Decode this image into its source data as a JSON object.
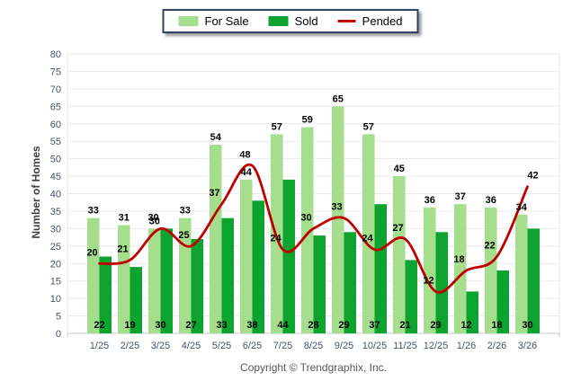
{
  "chart_data": {
    "type": "bar",
    "categories": [
      "1/25",
      "2/25",
      "3/25",
      "4/25",
      "5/25",
      "6/25",
      "7/25",
      "8/25",
      "9/25",
      "10/25",
      "11/25",
      "12/25",
      "1/26",
      "2/26",
      "3/26"
    ],
    "series": [
      {
        "name": "For Sale",
        "type": "bar",
        "color": "#A5DE8D",
        "values": [
          33,
          31,
          30,
          33,
          54,
          44,
          57,
          59,
          65,
          57,
          45,
          36,
          37,
          36,
          34
        ]
      },
      {
        "name": "Sold",
        "type": "bar",
        "color": "#0DA32F",
        "values": [
          22,
          19,
          30,
          27,
          33,
          38,
          44,
          28,
          29,
          37,
          21,
          29,
          12,
          18,
          30
        ]
      },
      {
        "name": "Pended",
        "type": "line",
        "color": "#C00000",
        "values": [
          20,
          21,
          30,
          25,
          37,
          48,
          24,
          30,
          33,
          24,
          27,
          12,
          18,
          22,
          42
        ]
      }
    ],
    "title": "",
    "xlabel": "",
    "ylabel": "Number of Homes",
    "ylim": [
      0,
      80
    ],
    "ytick_step": 5,
    "grid": true,
    "legend_position": "top-center",
    "value_labels": true,
    "grid_color": "#EAEAEA",
    "axis_color": "#C9C9C9",
    "tick_label_color": "#44546A"
  },
  "footer": {
    "copyright": "Copyright © Trendgraphix, Inc."
  }
}
